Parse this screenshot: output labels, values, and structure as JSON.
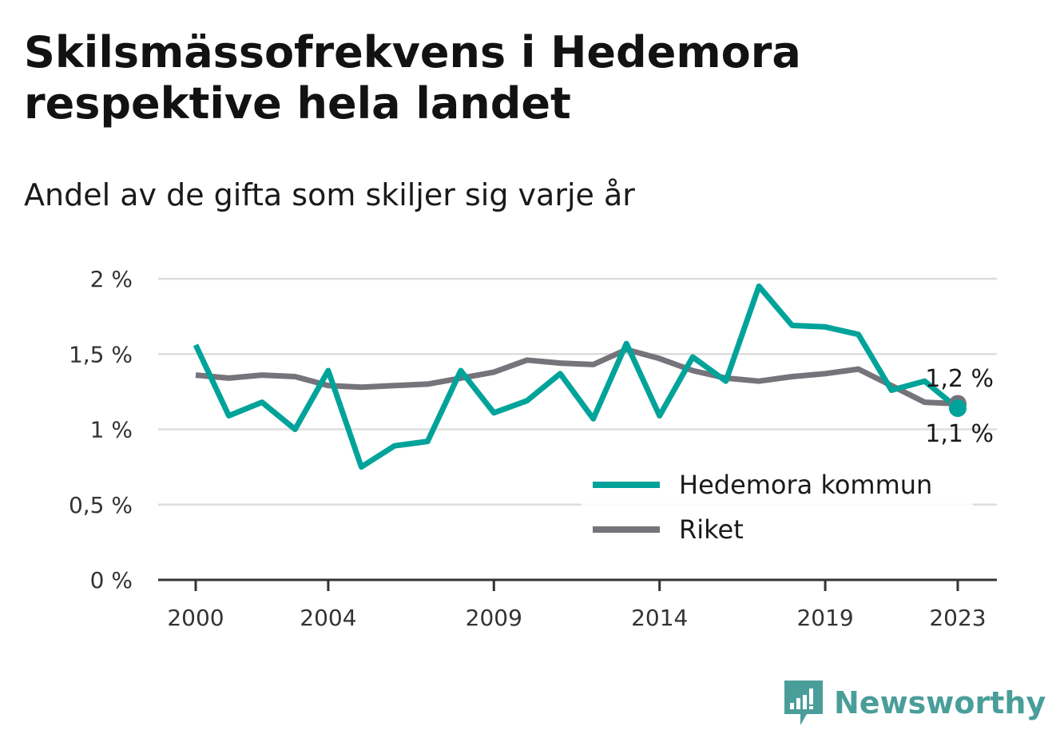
{
  "title": "Skilsmässofrekvens i Hedemora respektive hela landet",
  "subtitle": "Andel av de gifta som skiljer sig varje år",
  "brand": {
    "name": "Newsworthy",
    "icon": "bar-chart-speech-bubble-icon",
    "color": "#4a9e9a"
  },
  "colors": {
    "hedemora": "#00a39a",
    "riket": "#76737a",
    "grid": "#dddddd",
    "axis": "#333333"
  },
  "chart_data": {
    "type": "line",
    "title": "Skilsmässofrekvens i Hedemora respektive hela landet",
    "subtitle": "Andel av de gifta som skiljer sig varje år",
    "x": [
      2000,
      2001,
      2002,
      2003,
      2004,
      2005,
      2006,
      2007,
      2008,
      2009,
      2010,
      2011,
      2012,
      2013,
      2014,
      2015,
      2016,
      2017,
      2018,
      2019,
      2020,
      2021,
      2022,
      2023
    ],
    "x_ticks": [
      2000,
      2004,
      2009,
      2014,
      2019,
      2023
    ],
    "y_ticks": [
      0,
      0.5,
      1,
      1.5,
      2
    ],
    "y_tick_labels": [
      "0 %",
      "0,5 %",
      "1 %",
      "1,5 %",
      "2 %"
    ],
    "ylim": [
      0,
      2
    ],
    "grid": true,
    "legend_position": "bottom-right",
    "series": [
      {
        "name": "Hedemora kommun",
        "color": "#00a39a",
        "values": [
          1.56,
          1.09,
          1.18,
          1.0,
          1.39,
          0.75,
          0.89,
          0.92,
          1.39,
          1.11,
          1.19,
          1.37,
          1.07,
          1.57,
          1.09,
          1.48,
          1.32,
          1.95,
          1.69,
          1.68,
          1.63,
          1.26,
          1.32,
          1.14
        ],
        "end_label": "1,1 %"
      },
      {
        "name": "Riket",
        "color": "#76737a",
        "values": [
          1.36,
          1.34,
          1.36,
          1.35,
          1.29,
          1.28,
          1.29,
          1.3,
          1.34,
          1.38,
          1.46,
          1.44,
          1.43,
          1.53,
          1.47,
          1.39,
          1.34,
          1.32,
          1.35,
          1.37,
          1.4,
          1.29,
          1.18,
          1.17
        ],
        "end_label": "1,2 %"
      }
    ]
  }
}
